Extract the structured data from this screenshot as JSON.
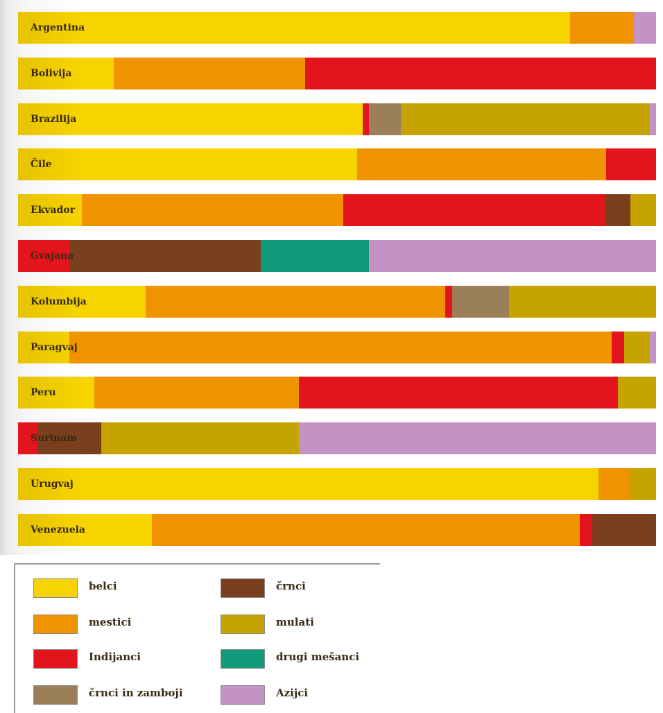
{
  "chart_data": {
    "type": "bar",
    "stacked": true,
    "orientation": "horizontal",
    "unit": "share of population (%)",
    "xlim": [
      0,
      100
    ],
    "grid": false,
    "legend_position": "bottom-left",
    "categories": [
      "Argentina",
      "Bolivija",
      "Brazilija",
      "Čile",
      "Ekvador",
      "Gvajana",
      "Kolumbija",
      "Paragvaj",
      "Peru",
      "Surinam",
      "Urugvaj",
      "Venezuela"
    ],
    "series": [
      {
        "key": "belci",
        "name": "belci",
        "color": "#f7d400",
        "values": [
          86.5,
          15.0,
          54.0,
          53.2,
          10.0,
          0.0,
          20.0,
          8.0,
          12.0,
          0.0,
          91.0,
          21.0
        ]
      },
      {
        "key": "mestici",
        "name": "mestici",
        "color": "#ef9300",
        "values": [
          10.0,
          30.0,
          0.0,
          39.0,
          41.0,
          0.0,
          47.0,
          85.0,
          32.0,
          0.0,
          5.0,
          67.0
        ]
      },
      {
        "key": "indijanci",
        "name": "Indijanci",
        "color": "#e3141b",
        "values": [
          0.0,
          55.0,
          1.0,
          7.8,
          41.0,
          8.0,
          1.0,
          2.0,
          50.0,
          3.0,
          0.0,
          2.0
        ]
      },
      {
        "key": "crnci_zamboji",
        "name": "črnci in zamboji",
        "color": "#9a7f59",
        "values": [
          0.0,
          0.0,
          5.0,
          0.0,
          0.0,
          0.0,
          9.0,
          0.0,
          0.0,
          0.0,
          0.0,
          0.0
        ]
      },
      {
        "key": "crnci",
        "name": "črnci",
        "color": "#7a3f1d",
        "values": [
          0.0,
          0.0,
          0.0,
          0.0,
          4.0,
          30.0,
          0.0,
          0.0,
          0.0,
          10.0,
          0.0,
          10.0
        ]
      },
      {
        "key": "mulati",
        "name": "mulati",
        "color": "#c5a300",
        "values": [
          0.0,
          0.0,
          39.0,
          0.0,
          4.0,
          0.0,
          23.0,
          4.0,
          6.0,
          31.0,
          4.0,
          0.0
        ]
      },
      {
        "key": "drugi_mesanci",
        "name": "drugi mešanci",
        "color": "#119a79",
        "values": [
          0.0,
          0.0,
          0.0,
          0.0,
          0.0,
          17.0,
          0.0,
          0.0,
          0.0,
          0.0,
          0.0,
          0.0
        ]
      },
      {
        "key": "azijci",
        "name": "Azijci",
        "color": "#c493c5",
        "values": [
          3.5,
          0.0,
          1.0,
          0.0,
          0.0,
          45.0,
          0.0,
          1.0,
          0.0,
          56.0,
          0.0,
          0.0
        ]
      }
    ],
    "legend": [
      {
        "series": "belci",
        "label": "belci",
        "color": "#f7d400"
      },
      {
        "series": "crnci",
        "label": "črnci",
        "color": "#7a3f1d"
      },
      {
        "series": "mestici",
        "label": "mestici",
        "color": "#ef9300"
      },
      {
        "series": "mulati",
        "label": "mulati",
        "color": "#c5a300"
      },
      {
        "series": "indijanci",
        "label": "Indijanci",
        "color": "#e3141b"
      },
      {
        "series": "drugi_mesanci",
        "label": "drugi mešanci",
        "color": "#119a79"
      },
      {
        "series": "crnci_zamboji",
        "label": "črnci in zamboji",
        "color": "#9a7f59"
      },
      {
        "series": "azijci",
        "label": "Azijci",
        "color": "#c493c5"
      }
    ]
  }
}
